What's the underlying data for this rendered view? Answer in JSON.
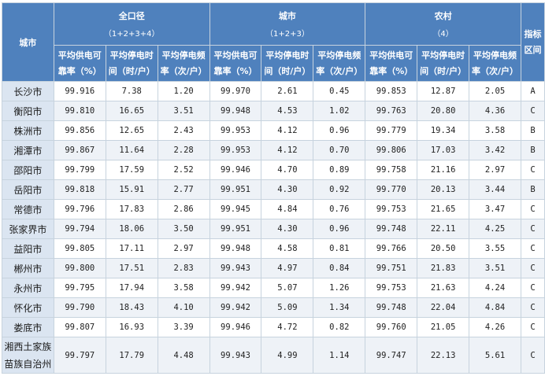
{
  "header": {
    "city_col": "城市",
    "index_col": "指标区间",
    "groups": [
      {
        "name": "全口径",
        "sub": "（1+2+3+4）"
      },
      {
        "name": "城市",
        "sub": "（1+2+3）"
      },
      {
        "name": "农村",
        "sub": "（4）"
      }
    ],
    "sub_cols": [
      {
        "l1": "平均供电可",
        "l2": "靠率（%）"
      },
      {
        "l1": "平均停电时",
        "l2": "间（时/户）"
      },
      {
        "l1": "平均停电频",
        "l2": "率（次/户）"
      }
    ]
  },
  "rows": [
    {
      "city": "长沙市",
      "v": [
        "99.916",
        "7.38",
        "1.20",
        "99.970",
        "2.61",
        "0.45",
        "99.853",
        "12.87",
        "2.05"
      ],
      "idx": "A"
    },
    {
      "city": "衡阳市",
      "v": [
        "99.810",
        "16.65",
        "3.51",
        "99.948",
        "4.53",
        "1.02",
        "99.763",
        "20.80",
        "4.36"
      ],
      "idx": "C"
    },
    {
      "city": "株洲市",
      "v": [
        "99.856",
        "12.65",
        "2.43",
        "99.953",
        "4.12",
        "0.96",
        "99.779",
        "19.34",
        "3.58"
      ],
      "idx": "B"
    },
    {
      "city": "湘潭市",
      "v": [
        "99.867",
        "11.64",
        "2.28",
        "99.953",
        "4.12",
        "0.70",
        "99.806",
        "17.03",
        "3.42"
      ],
      "idx": "B"
    },
    {
      "city": "邵阳市",
      "v": [
        "99.799",
        "17.59",
        "2.52",
        "99.946",
        "4.70",
        "0.89",
        "99.758",
        "21.16",
        "2.97"
      ],
      "idx": "C"
    },
    {
      "city": "岳阳市",
      "v": [
        "99.818",
        "15.91",
        "2.77",
        "99.951",
        "4.30",
        "0.92",
        "99.770",
        "20.13",
        "3.44"
      ],
      "idx": "B"
    },
    {
      "city": "常德市",
      "v": [
        "99.796",
        "17.83",
        "2.86",
        "99.945",
        "4.84",
        "0.76",
        "99.753",
        "21.65",
        "3.47"
      ],
      "idx": "C"
    },
    {
      "city": "张家界市",
      "v": [
        "99.794",
        "18.06",
        "3.50",
        "99.951",
        "4.30",
        "0.96",
        "99.748",
        "22.11",
        "4.25"
      ],
      "idx": "C"
    },
    {
      "city": "益阳市",
      "v": [
        "99.805",
        "17.11",
        "2.97",
        "99.948",
        "4.58",
        "0.81",
        "99.766",
        "20.50",
        "3.55"
      ],
      "idx": "C"
    },
    {
      "city": "郴州市",
      "v": [
        "99.800",
        "17.51",
        "2.83",
        "99.943",
        "4.97",
        "0.84",
        "99.751",
        "21.83",
        "3.51"
      ],
      "idx": "C"
    },
    {
      "city": "永州市",
      "v": [
        "99.795",
        "17.94",
        "3.58",
        "99.942",
        "5.07",
        "1.26",
        "99.753",
        "21.63",
        "4.24"
      ],
      "idx": "C"
    },
    {
      "city": "怀化市",
      "v": [
        "99.790",
        "18.43",
        "4.10",
        "99.942",
        "5.09",
        "1.34",
        "99.748",
        "22.04",
        "4.84"
      ],
      "idx": "C"
    },
    {
      "city": "娄底市",
      "v": [
        "99.807",
        "16.93",
        "3.39",
        "99.946",
        "4.72",
        "0.82",
        "99.760",
        "21.05",
        "4.26"
      ],
      "idx": "C"
    },
    {
      "city": "湘西土家族苗族自治州",
      "city_l1": "湘西土家族",
      "city_l2": "苗族自治州",
      "v": [
        "99.797",
        "17.79",
        "4.48",
        "99.943",
        "4.99",
        "1.14",
        "99.747",
        "22.13",
        "5.61"
      ],
      "idx": "C"
    }
  ]
}
